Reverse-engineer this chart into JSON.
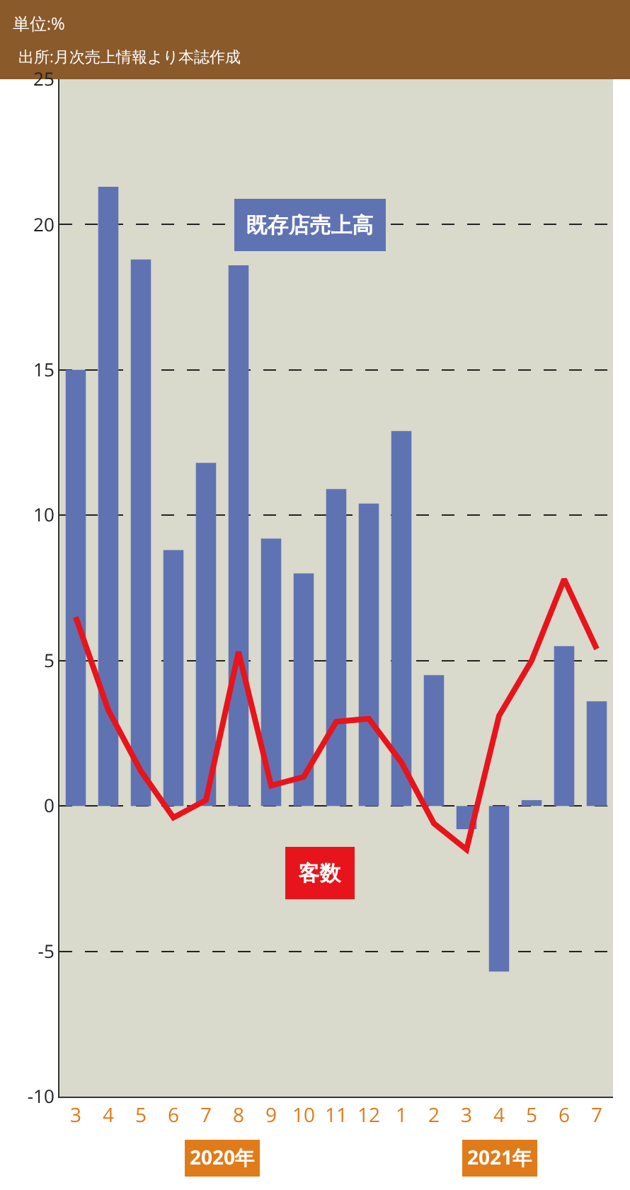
{
  "chart_data": {
    "type": "bar",
    "subtitle": "単位:%",
    "annotations": [
      "出所:月次売上情報より本誌作成",
      "2020年",
      "2021年"
    ],
    "categories": [
      "3",
      "4",
      "5",
      "6",
      "7",
      "8",
      "9",
      "10",
      "11",
      "12",
      "1",
      "2",
      "3",
      "4",
      "5",
      "6",
      "7"
    ],
    "series": [
      {
        "name": "既存店売上高",
        "color": "#5f73b3",
        "values": [
          15.0,
          21.3,
          18.8,
          8.8,
          11.8,
          18.6,
          9.2,
          8.0,
          10.9,
          10.4,
          12.9,
          4.5,
          -0.8,
          -5.7,
          0.2,
          5.5,
          3.6
        ]
      },
      {
        "name": "客数",
        "type": "line",
        "color": "#e8141b",
        "values": [
          6.5,
          3.3,
          1.2,
          -0.4,
          0.2,
          5.3,
          0.7,
          1.0,
          2.9,
          3.0,
          1.5,
          -0.6,
          -1.5,
          3.1,
          5.0,
          7.8,
          5.4
        ]
      }
    ],
    "ylim": [
      -10,
      25
    ],
    "yticks": [
      -10,
      -5,
      0,
      5,
      10,
      15,
      20,
      25
    ],
    "grid": "y",
    "legend": false,
    "marker": "none",
    "line_style": "solid"
  }
}
